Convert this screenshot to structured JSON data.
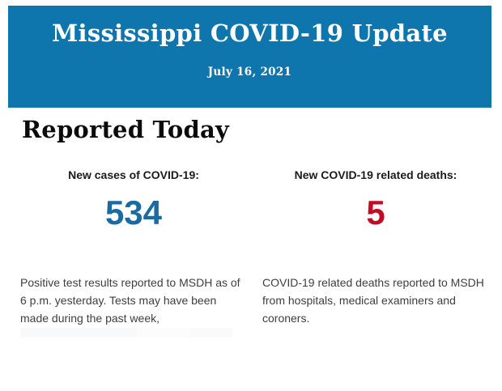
{
  "header": {
    "title": "Mississippi COVID-19 Update",
    "date": "July 16, 2021",
    "background_color": "#0e76ad",
    "text_color": "#ffffff"
  },
  "main": {
    "section_title": "Reported Today",
    "stats": [
      {
        "label": "New cases of COVID-19:",
        "value": "534",
        "value_color": "#1a6ba3",
        "description": "Positive test results reported to MSDH as of 6 p.m. yesterday. Tests may have been made during the past week,"
      },
      {
        "label": "New COVID-19 related deaths:",
        "value": "5",
        "value_color": "#c00d23",
        "description": "COVID-19 related deaths reported to MSDH from hospitals, medical examiners and coroners."
      }
    ]
  }
}
